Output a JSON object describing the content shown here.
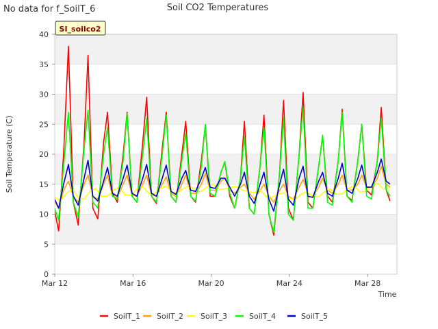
{
  "chart_data": {
    "type": "line",
    "title": "Soil CO2 Temperatures",
    "note": "No data for f_SoilT_6",
    "badge": "SI_soilco2",
    "xlabel": "Time",
    "ylabel": "Soil Temperature (C)",
    "xlim": [
      0,
      17.5
    ],
    "ylim": [
      0,
      40
    ],
    "yticks": [
      0,
      5,
      10,
      15,
      20,
      25,
      30,
      35,
      40
    ],
    "xticks": [
      {
        "x": 0,
        "label": "Mar 12"
      },
      {
        "x": 4,
        "label": "Mar 16"
      },
      {
        "x": 8,
        "label": "Mar 20"
      },
      {
        "x": 12,
        "label": "Mar 24"
      },
      {
        "x": 16,
        "label": "Mar 28"
      }
    ],
    "grid": "horizontal bands",
    "legend_position": "bottom",
    "colors": {
      "SoilT_1": "#ff0000",
      "SoilT_2": "#ffa500",
      "SoilT_3": "#ffff00",
      "SoilT_4": "#00ff00",
      "SoilT_5": "#0000cc"
    },
    "series": [
      {
        "name": "SoilT_1",
        "color": "#ff0000",
        "x": [
          0,
          0.2,
          0.45,
          0.7,
          0.95,
          1.2,
          1.5,
          1.7,
          1.95,
          2.2,
          2.5,
          2.7,
          2.95,
          3.2,
          3.5,
          3.7,
          3.95,
          4.2,
          4.5,
          4.7,
          4.95,
          5.2,
          5.5,
          5.7,
          5.95,
          6.2,
          6.5,
          6.7,
          6.95,
          7.2,
          7.5,
          7.7,
          7.95,
          8.2,
          8.5,
          8.7,
          8.95,
          9.2,
          9.5,
          9.7,
          9.95,
          10.2,
          10.5,
          10.7,
          10.95,
          11.2,
          11.5,
          11.7,
          11.95,
          12.2,
          12.5,
          12.7,
          12.95,
          13.2,
          13.5,
          13.7,
          13.95,
          14.2,
          14.5,
          14.7,
          14.95,
          15.2,
          15.5,
          15.7,
          15.95,
          16.2,
          16.5,
          16.7,
          16.95,
          17.15
        ],
        "y": [
          10.5,
          7.2,
          20,
          38,
          12,
          8.2,
          22,
          36.5,
          11,
          9.2,
          22,
          27,
          13.5,
          12,
          20,
          27,
          13,
          12,
          22,
          29.5,
          13,
          11.8,
          21,
          27,
          13,
          12,
          20,
          25.5,
          13,
          12,
          19,
          24.8,
          13,
          13,
          17,
          18.7,
          13,
          11,
          16,
          25.5,
          11,
          10,
          18,
          26.5,
          10,
          6.5,
          17,
          29,
          11,
          9,
          20,
          30.3,
          12,
          11,
          18,
          23,
          13,
          12,
          19,
          27.5,
          13,
          12.3,
          19,
          25,
          14,
          13.2,
          19,
          27.8,
          14,
          12.2
        ]
      },
      {
        "name": "SoilT_2",
        "color": "#ffa500",
        "x": [
          0,
          0.2,
          0.45,
          0.7,
          0.95,
          1.2,
          1.5,
          1.7,
          1.95,
          2.2,
          2.5,
          2.7,
          2.95,
          3.2,
          3.5,
          3.7,
          3.95,
          4.2,
          4.5,
          4.7,
          4.95,
          5.2,
          5.5,
          5.7,
          5.95,
          6.2,
          6.5,
          6.7,
          6.95,
          7.2,
          7.5,
          7.7,
          7.95,
          8.2,
          8.5,
          8.7,
          8.95,
          9.2,
          9.5,
          9.7,
          9.95,
          10.2,
          10.5,
          10.7,
          10.95,
          11.2,
          11.5,
          11.7,
          11.95,
          12.2,
          12.5,
          12.7,
          12.95,
          13.2,
          13.5,
          13.7,
          13.95,
          14.2,
          14.5,
          14.7,
          14.95,
          15.2,
          15.5,
          15.7,
          15.95,
          16.2,
          16.5,
          16.7,
          16.95,
          17.15
        ],
        "y": [
          12,
          11,
          14,
          15.5,
          13,
          12,
          15,
          16.5,
          13,
          12.5,
          15,
          16.5,
          13,
          12.8,
          15,
          16.5,
          13.2,
          13,
          15,
          16.5,
          13.2,
          13,
          15,
          16.2,
          13.5,
          13,
          15,
          16.5,
          13.5,
          13.5,
          15,
          16.8,
          14,
          14,
          15.5,
          16,
          14,
          13.5,
          14.5,
          15,
          13.5,
          12.5,
          14,
          15,
          13,
          12,
          14,
          15,
          13,
          12.5,
          14.5,
          15.8,
          13.5,
          13,
          14.5,
          16,
          14,
          13.5,
          15,
          16.5,
          14,
          14,
          15,
          16.5,
          14.5,
          14.5,
          16,
          18,
          15,
          14.5
        ]
      },
      {
        "name": "SoilT_3",
        "color": "#ffff00",
        "x": [
          0,
          0.3,
          0.6,
          0.9,
          1.2,
          1.5,
          1.8,
          2.1,
          2.4,
          2.7,
          3,
          3.3,
          3.6,
          3.9,
          4.2,
          4.5,
          4.8,
          5.1,
          5.4,
          5.7,
          6,
          6.3,
          6.6,
          6.9,
          7.2,
          7.5,
          7.8,
          8.1,
          8.4,
          8.7,
          9,
          9.3,
          9.6,
          9.9,
          10.2,
          10.5,
          10.8,
          11.1,
          11.4,
          11.7,
          12,
          12.3,
          12.6,
          12.9,
          13.2,
          13.5,
          13.8,
          14.1,
          14.4,
          14.7,
          15,
          15.3,
          15.6,
          15.9,
          16.2,
          16.5,
          16.8,
          17.15
        ],
        "y": [
          12.8,
          12.3,
          13.5,
          14.2,
          12.8,
          12.5,
          13.8,
          14.3,
          13,
          13,
          14,
          14.5,
          13.2,
          13.2,
          14.2,
          14.6,
          13.5,
          13.4,
          14.3,
          14.7,
          13.6,
          13.6,
          14.3,
          14.8,
          13.8,
          13.8,
          14.6,
          15,
          14.2,
          14.2,
          14.5,
          14.6,
          14,
          13.8,
          13.6,
          14,
          13,
          12.8,
          13.3,
          13.6,
          12.6,
          12.5,
          13.3,
          13.8,
          12.9,
          12.9,
          13.8,
          14.2,
          13.3,
          13.4,
          14.3,
          14.7,
          13.7,
          13.8,
          14.7,
          15.2,
          14.2,
          14.4
        ]
      },
      {
        "name": "SoilT_4",
        "color": "#00ff00",
        "x": [
          0,
          0.2,
          0.45,
          0.7,
          0.95,
          1.2,
          1.5,
          1.7,
          1.95,
          2.2,
          2.5,
          2.7,
          2.95,
          3.2,
          3.5,
          3.7,
          3.95,
          4.2,
          4.5,
          4.7,
          4.95,
          5.2,
          5.5,
          5.7,
          5.95,
          6.2,
          6.5,
          6.7,
          6.95,
          7.2,
          7.5,
          7.7,
          7.95,
          8.2,
          8.5,
          8.7,
          8.95,
          9.2,
          9.5,
          9.7,
          9.95,
          10.2,
          10.5,
          10.7,
          10.95,
          11.2,
          11.5,
          11.7,
          11.95,
          12.2,
          12.5,
          12.7,
          12.95,
          13.2,
          13.5,
          13.7,
          13.95,
          14.2,
          14.5,
          14.7,
          14.95,
          15.2,
          15.5,
          15.7,
          15.95,
          16.2,
          16.5,
          16.7,
          16.95,
          17.15
        ],
        "y": [
          11,
          9,
          18,
          27,
          12,
          9.5,
          21,
          27.3,
          12,
          11,
          20,
          24.5,
          13,
          12.5,
          19,
          26.8,
          13,
          12,
          20,
          26,
          13,
          12,
          20,
          26.5,
          13,
          12,
          19,
          23.5,
          13,
          12.2,
          18,
          25,
          13.5,
          13,
          17,
          18.8,
          13.5,
          11,
          16,
          23,
          11,
          10,
          18,
          24.5,
          10,
          7,
          17,
          26,
          10,
          9,
          20,
          27.8,
          11,
          11,
          18,
          23.2,
          12,
          11.5,
          19,
          27,
          13,
          12,
          19,
          25,
          13,
          12.5,
          19,
          26,
          14,
          13
        ]
      },
      {
        "name": "SoilT_5",
        "color": "#0000cc",
        "x": [
          0,
          0.2,
          0.45,
          0.7,
          0.95,
          1.2,
          1.5,
          1.7,
          1.95,
          2.2,
          2.5,
          2.7,
          2.95,
          3.2,
          3.5,
          3.7,
          3.95,
          4.2,
          4.5,
          4.7,
          4.95,
          5.2,
          5.5,
          5.7,
          5.95,
          6.2,
          6.5,
          6.7,
          6.95,
          7.2,
          7.5,
          7.7,
          7.95,
          8.2,
          8.5,
          8.7,
          8.95,
          9.2,
          9.5,
          9.7,
          9.95,
          10.2,
          10.5,
          10.7,
          10.95,
          11.2,
          11.5,
          11.7,
          11.95,
          12.2,
          12.5,
          12.7,
          12.95,
          13.2,
          13.5,
          13.7,
          13.95,
          14.2,
          14.5,
          14.7,
          14.95,
          15.2,
          15.5,
          15.7,
          15.95,
          16.2,
          16.5,
          16.7,
          16.95,
          17.15
        ],
        "y": [
          12.5,
          11,
          15,
          18.3,
          13,
          11.5,
          16,
          19,
          13,
          12.2,
          15.5,
          17.8,
          13.5,
          13,
          16,
          18.2,
          13.5,
          13,
          16,
          18.3,
          13.5,
          13,
          16,
          18.2,
          13.8,
          13.3,
          16,
          17.3,
          14,
          13.8,
          16,
          17.8,
          14.5,
          14.3,
          16,
          16,
          14.5,
          13,
          15,
          17,
          13,
          11.8,
          15,
          17,
          12.5,
          10.5,
          15,
          17.5,
          12.5,
          11.5,
          16,
          18,
          13,
          12.8,
          15.5,
          17,
          13.5,
          13,
          16,
          18.5,
          14,
          13.5,
          16,
          18.2,
          14.5,
          14.5,
          17,
          19.2,
          15.5,
          15
        ]
      }
    ]
  }
}
